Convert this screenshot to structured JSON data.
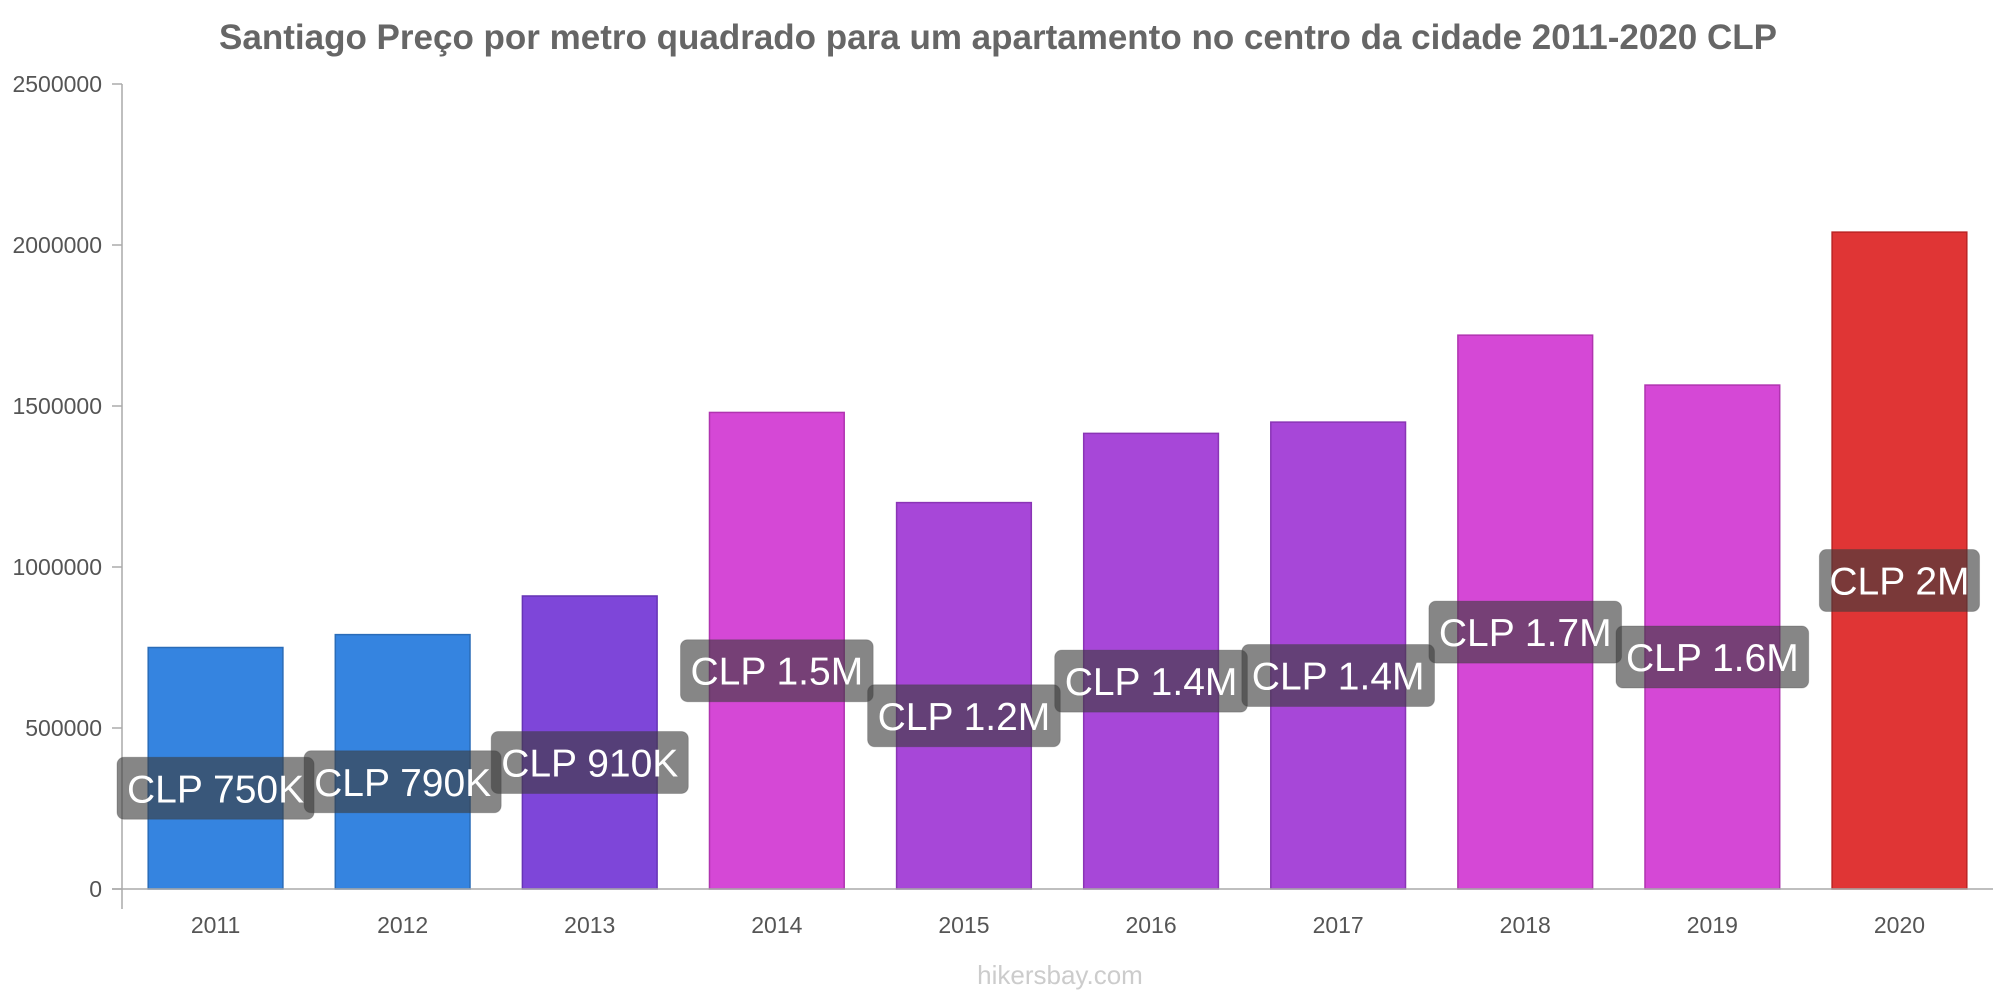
{
  "chart_data": {
    "type": "bar",
    "title": "Santiago Preço por metro quadrado para um apartamento no centro da cidade 2011-2020 CLP",
    "xlabel": "",
    "ylabel": "",
    "ylim": [
      0,
      2500000
    ],
    "yticks": [
      "0",
      "500000",
      "1000000",
      "1500000",
      "2000000",
      "2500000"
    ],
    "ytick_values": [
      0,
      500000,
      1000000,
      1500000,
      2000000,
      2500000
    ],
    "grid": false,
    "categories": [
      "2011",
      "2012",
      "2013",
      "2014",
      "2015",
      "2016",
      "2017",
      "2018",
      "2019",
      "2020"
    ],
    "values": [
      750000,
      790000,
      910000,
      1480000,
      1200000,
      1415000,
      1450000,
      1720000,
      1565000,
      2040000
    ],
    "data_labels": [
      "CLP 750K",
      "CLP 790K",
      "CLP 910K",
      "CLP 1.5M",
      "CLP 1.2M",
      "CLP 1.4M",
      "CLP 1.4M",
      "CLP 1.7M",
      "CLP 1.6M",
      "CLP 2M"
    ],
    "colors": [
      "#3584e0",
      "#3584e0",
      "#7e46d9",
      "#d548d6",
      "#a747d8",
      "#a747d8",
      "#a747d8",
      "#d548d6",
      "#d548d6",
      "#e03535"
    ],
    "edge_colors": [
      "#2a6cb8",
      "#2a6cb8",
      "#6634b5",
      "#b034b0",
      "#8a35b5",
      "#8a35b5",
      "#8a35b5",
      "#b034b0",
      "#b034b0",
      "#bb2525"
    ]
  },
  "watermark": "hikersbay.com"
}
